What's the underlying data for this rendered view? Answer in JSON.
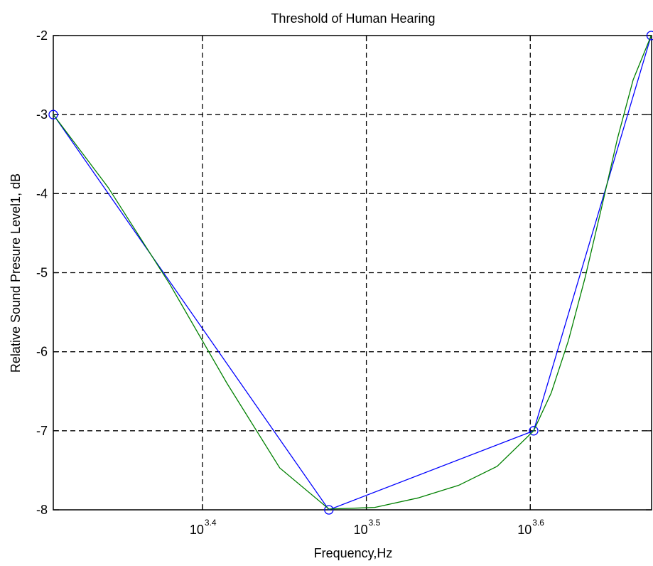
{
  "chart_data": {
    "type": "line",
    "title": "Threshold of Human Hearing",
    "xlabel": "Frequency,Hz",
    "ylabel": "Relative Sound Presure Level1, dB",
    "x_scale": "log",
    "xlim_log10": [
      3.309,
      3.674
    ],
    "ylim": [
      -8,
      -2
    ],
    "grid": true,
    "x_ticks": [
      {
        "base": "10",
        "exp": "3.4",
        "log10": 3.4
      },
      {
        "base": "10",
        "exp": "3.5",
        "log10": 3.5
      },
      {
        "base": "10",
        "exp": "3.6",
        "log10": 3.6
      }
    ],
    "y_ticks": [
      {
        "label": "-2",
        "value": -2
      },
      {
        "label": "-3",
        "value": -3
      },
      {
        "label": "-4",
        "value": -4
      },
      {
        "label": "-5",
        "value": -5
      },
      {
        "label": "-6",
        "value": -6
      },
      {
        "label": "-7",
        "value": -7
      },
      {
        "label": "-8",
        "value": -8
      }
    ],
    "series": [
      {
        "style": "line-with-circle-markers",
        "color": "#0000ff",
        "x": [
          2037,
          3000,
          4000,
          4718
        ],
        "y": [
          -3,
          -8,
          -7,
          -2
        ]
      },
      {
        "style": "smooth-line",
        "color": "#008000",
        "x": [
          2037,
          2200,
          2400,
          2600,
          2800,
          3000,
          3200,
          3400,
          3600,
          3800,
          4000,
          4100,
          4200,
          4300,
          4400,
          4500,
          4600,
          4718
        ],
        "y": [
          -3,
          -3.92,
          -5.15,
          -6.4,
          -7.47,
          -7.99,
          -7.97,
          -7.85,
          -7.69,
          -7.45,
          -7,
          -6.52,
          -5.86,
          -5.06,
          -4.18,
          -3.3,
          -2.56,
          -2
        ]
      }
    ]
  }
}
